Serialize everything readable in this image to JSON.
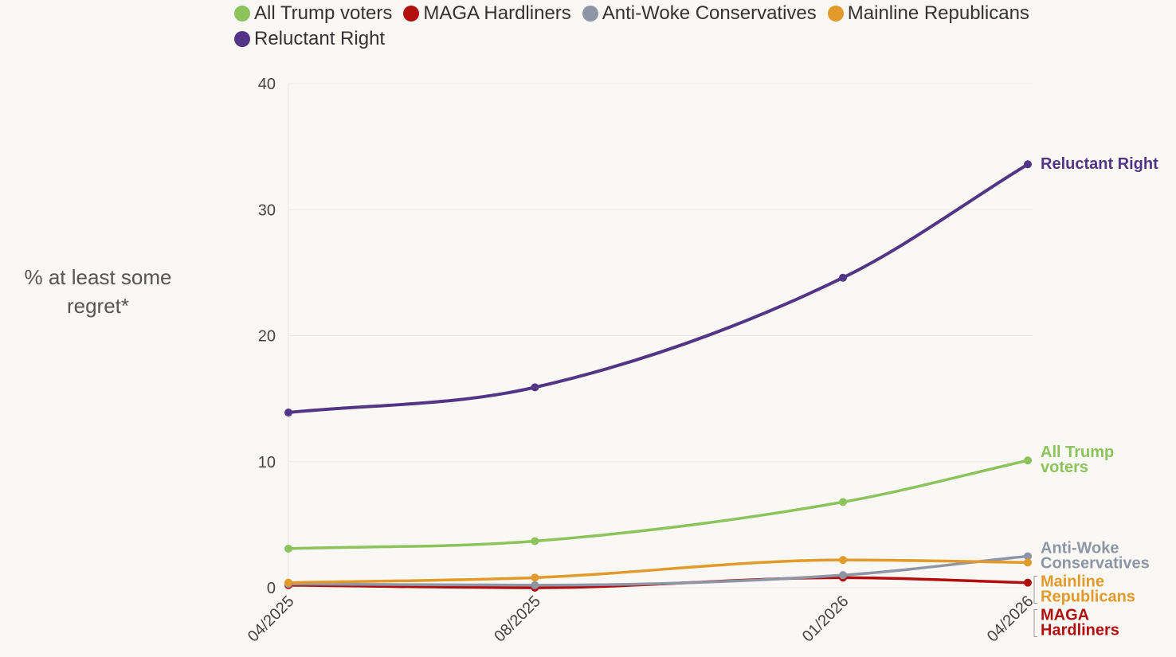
{
  "chart_data": {
    "type": "line",
    "title": "",
    "xlabel": "",
    "ylabel": "% at least some regret*",
    "x": [
      "04/2025",
      "08/2025",
      "01/2026",
      "04/2026"
    ],
    "x_months": [
      0,
      4,
      9,
      12
    ],
    "ylim": [
      0,
      40
    ],
    "yticks": [
      0,
      10,
      20,
      30,
      40
    ],
    "grid": true,
    "legend_position": "top",
    "series": [
      {
        "name": "All Trump voters",
        "end_label": [
          "All Trump",
          "voters"
        ],
        "color": "#8cc35a",
        "values": [
          3.1,
          3.7,
          6.8,
          10.1
        ]
      },
      {
        "name": "MAGA Hardliners",
        "end_label": [
          "MAGA",
          "Hardliners"
        ],
        "color": "#b30e0e",
        "values": [
          0.2,
          0.0,
          0.8,
          0.4
        ]
      },
      {
        "name": "Anti-Woke Conservatives",
        "end_label": [
          "Anti-Woke",
          "Conservatives"
        ],
        "color": "#8e95a4",
        "values": [
          0.3,
          0.2,
          1.0,
          2.5
        ]
      },
      {
        "name": "Mainline Republicans",
        "end_label": [
          "Mainline",
          "Republicans"
        ],
        "color": "#e29a2a",
        "values": [
          0.4,
          0.8,
          2.2,
          2.0
        ]
      },
      {
        "name": "Reluctant Right",
        "end_label": [
          "Reluctant Right"
        ],
        "color": "#523584",
        "values": [
          13.9,
          15.9,
          24.6,
          33.6
        ]
      }
    ]
  }
}
